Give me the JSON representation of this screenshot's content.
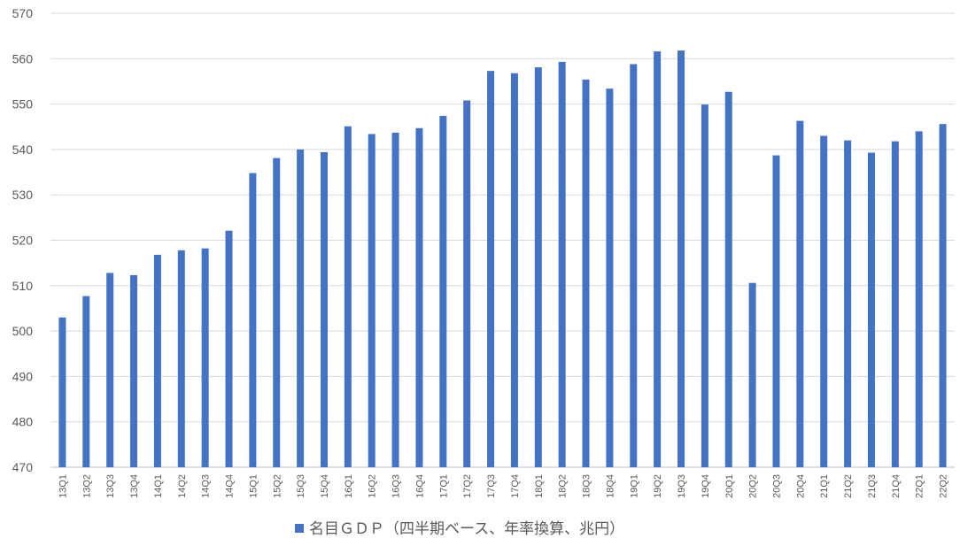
{
  "chart_data": {
    "type": "bar",
    "title": "",
    "xlabel": "",
    "ylabel": "",
    "ylim": [
      470,
      570
    ],
    "yticks": [
      470,
      480,
      490,
      500,
      510,
      520,
      530,
      540,
      550,
      560,
      570
    ],
    "grid": true,
    "legend_position": "bottom",
    "bar_color": "#4472C4",
    "categories": [
      "13Q1",
      "13Q2",
      "13Q3",
      "13Q4",
      "14Q1",
      "14Q2",
      "14Q3",
      "14Q4",
      "15Q1",
      "15Q2",
      "15Q3",
      "15Q4",
      "16Q1",
      "16Q2",
      "16Q3",
      "16Q4",
      "17Q1",
      "17Q2",
      "17Q3",
      "17Q4",
      "18Q1",
      "18Q2",
      "18Q3",
      "18Q4",
      "19Q1",
      "19Q2",
      "19Q3",
      "19Q4",
      "20Q1",
      "20Q2",
      "20Q3",
      "20Q4",
      "21Q1",
      "21Q2",
      "21Q3",
      "21Q4",
      "22Q1",
      "22Q2"
    ],
    "series": [
      {
        "name": "名目ＧＤＰ（四半期ベース、年率換算、兆円）",
        "values": [
          503.0,
          507.7,
          512.8,
          512.3,
          516.8,
          517.8,
          518.2,
          522.1,
          534.8,
          538.1,
          540.0,
          539.4,
          545.1,
          543.4,
          543.7,
          544.7,
          547.4,
          550.8,
          557.3,
          556.8,
          558.1,
          559.3,
          555.4,
          553.4,
          558.8,
          561.6,
          561.8,
          549.9,
          552.7,
          510.6,
          538.7,
          546.3,
          543.0,
          542.0,
          539.3,
          541.8,
          544.0,
          545.6
        ]
      }
    ]
  }
}
